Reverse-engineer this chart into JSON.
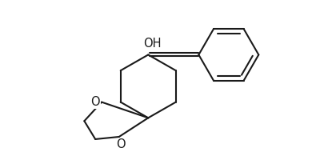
{
  "background_color": "#ffffff",
  "line_color": "#1a1a1a",
  "line_width": 1.5,
  "fig_width": 4.06,
  "fig_height": 2.0,
  "dpi": 100,
  "oh_label": "OH",
  "o_label1": "O",
  "o_label2": "O",
  "font_size": 10.5
}
